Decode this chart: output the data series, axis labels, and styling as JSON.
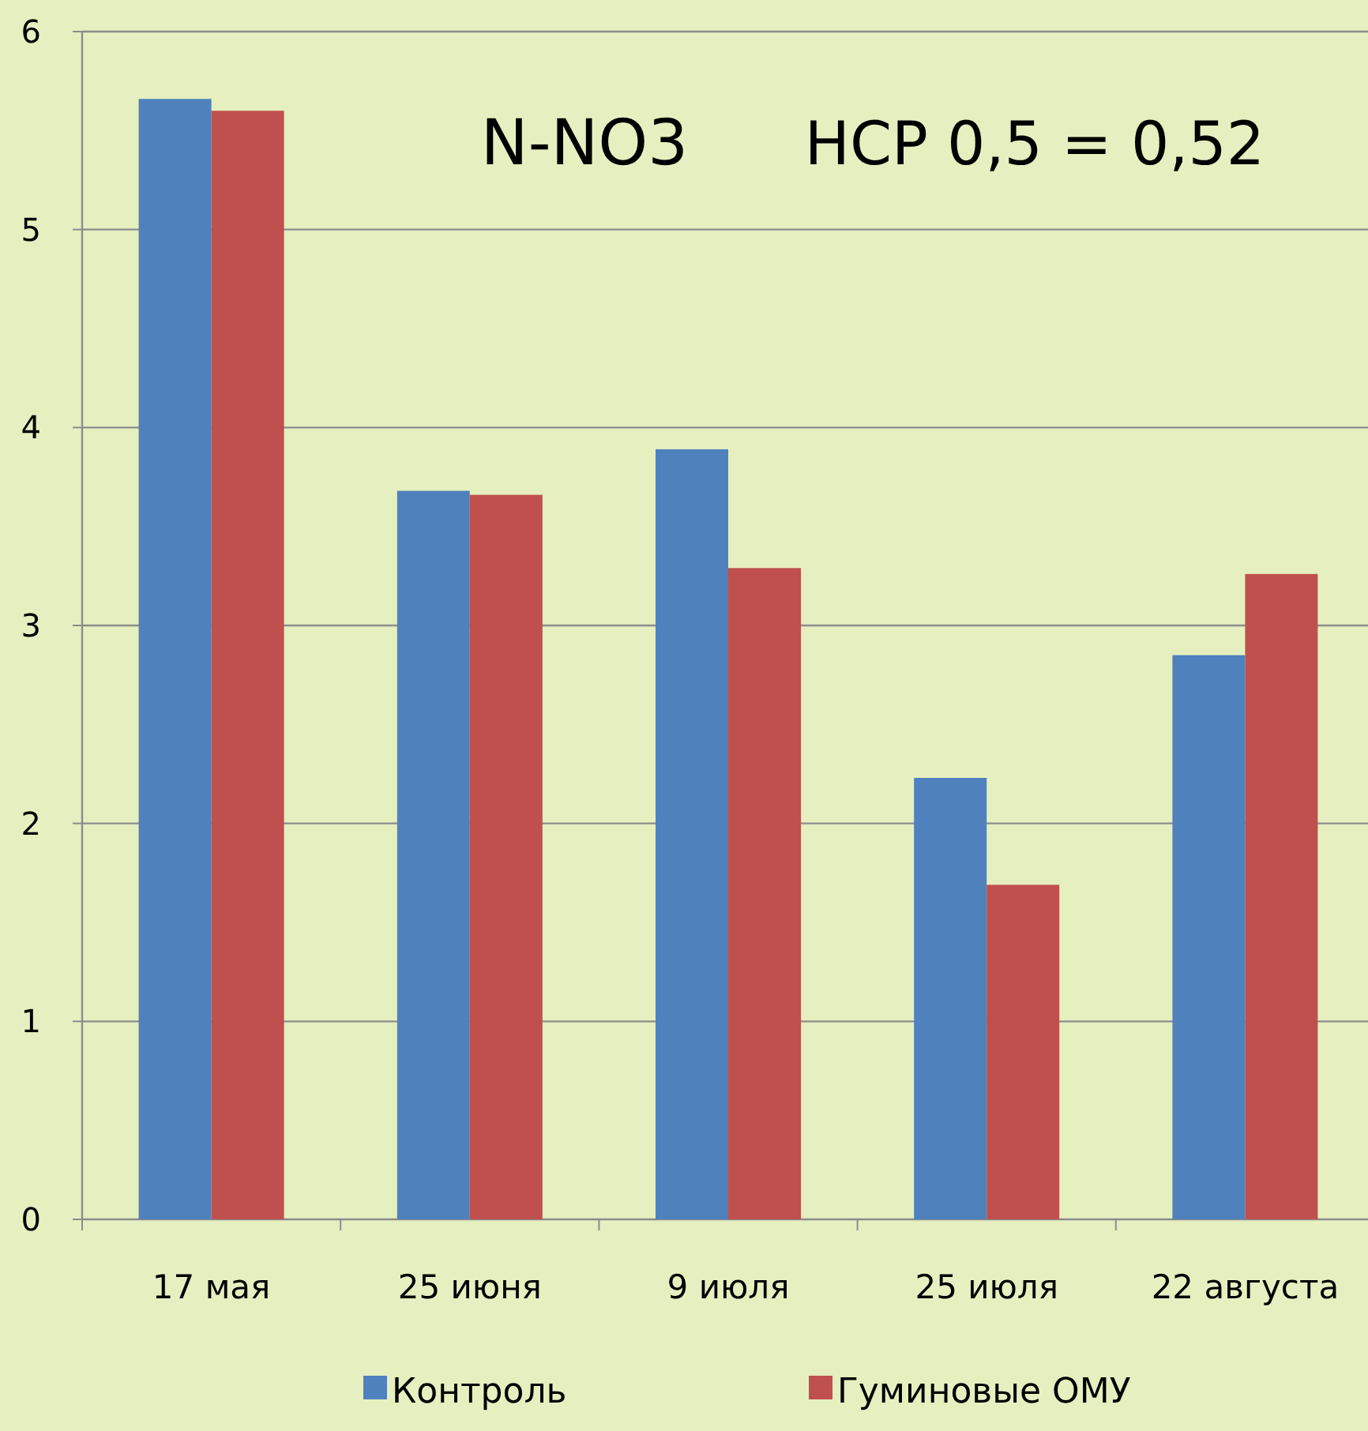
{
  "chart_data": {
    "type": "bar",
    "title": "N-NO3",
    "annotations": [
      "НСР 0,5 = 0,52"
    ],
    "categories": [
      "17 мая",
      "25 июня",
      "9 июля",
      "25 июля",
      "22 августа"
    ],
    "series": [
      {
        "name": "Контроль",
        "color": "#4f81bd",
        "values": [
          5.66,
          3.68,
          3.89,
          2.23,
          2.85
        ]
      },
      {
        "name": "Гуминовые ОМУ",
        "color": "#c0504d",
        "values": [
          5.6,
          3.66,
          3.29,
          1.69,
          3.26
        ]
      }
    ],
    "ylim": [
      0,
      6
    ],
    "yticks": [
      0,
      1,
      2,
      3,
      4,
      5,
      6
    ],
    "grid": "y",
    "legend": "bottom"
  }
}
